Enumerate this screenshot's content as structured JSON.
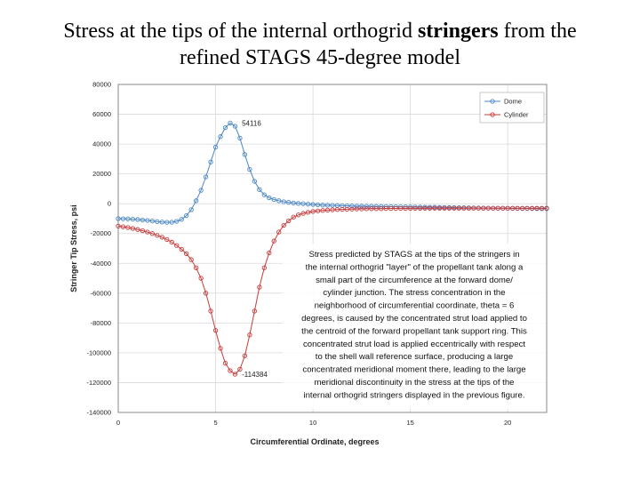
{
  "slide": {
    "title_pre": "Stress at the tips of the internal orthogrid ",
    "title_bold": "stringers",
    "title_post": " from the refined STAGS 45-degree model"
  },
  "chart_data": {
    "type": "line",
    "xlabel": "Circumferential Ordinate, degrees",
    "ylabel": "Stringer Tip Stress, psi",
    "xlim": [
      0,
      22
    ],
    "ylim": [
      -140000,
      80000
    ],
    "xticks": [
      0,
      5,
      10,
      15,
      20
    ],
    "yticks": [
      80000,
      60000,
      40000,
      20000,
      0,
      -20000,
      -40000,
      -60000,
      -80000,
      -100000,
      -120000,
      -140000
    ],
    "grid": true,
    "legend_position": "top-right",
    "series": [
      {
        "name": "Dome",
        "color": "#4a86c5",
        "x": [
          0,
          0.25,
          0.5,
          0.75,
          1,
          1.25,
          1.5,
          1.75,
          2,
          2.25,
          2.5,
          2.75,
          3,
          3.25,
          3.5,
          3.75,
          4,
          4.25,
          4.5,
          4.75,
          5,
          5.25,
          5.5,
          5.75,
          6,
          6.25,
          6.5,
          6.75,
          7,
          7.25,
          7.5,
          7.75,
          8,
          8.25,
          8.5,
          8.75,
          9,
          9.25,
          9.5,
          9.75,
          10,
          10.25,
          10.5,
          10.75,
          11,
          11.25,
          11.5,
          11.75,
          12,
          12.25,
          12.5,
          12.75,
          13,
          13.25,
          13.5,
          13.75,
          14,
          14.25,
          14.5,
          14.75,
          15,
          15.25,
          15.5,
          15.75,
          16,
          16.25,
          16.5,
          16.75,
          17,
          17.25,
          17.5,
          17.75,
          18,
          18.25,
          18.5,
          18.75,
          19,
          19.25,
          19.5,
          19.75,
          20,
          20.25,
          20.5,
          20.75,
          21,
          21.25,
          21.5,
          21.75,
          22
        ],
        "y": [
          -10000,
          -10100,
          -10200,
          -10400,
          -10600,
          -10900,
          -11200,
          -11600,
          -12000,
          -12300,
          -12500,
          -12400,
          -11800,
          -10500,
          -8000,
          -4000,
          2000,
          9000,
          18000,
          28000,
          38000,
          45000,
          51000,
          54116,
          52000,
          44000,
          33000,
          23000,
          15000,
          9500,
          6000,
          4000,
          2800,
          2000,
          1300,
          900,
          500,
          200,
          0,
          -300,
          -500,
          -700,
          -900,
          -1000,
          -1100,
          -1200,
          -1300,
          -1400,
          -1500,
          -1600,
          -1650,
          -1700,
          -1750,
          -1800,
          -1850,
          -1900,
          -1950,
          -2000,
          -2050,
          -2100,
          -2150,
          -2200,
          -2250,
          -2300,
          -2350,
          -2400,
          -2450,
          -2500,
          -2550,
          -2600,
          -2650,
          -2700,
          -2750,
          -2800,
          -2850,
          -2900,
          -2950,
          -3000,
          -3000,
          -3050,
          -3100,
          -3100,
          -3150,
          -3200,
          -3200,
          -3250,
          -3300,
          -3300,
          -3350
        ]
      },
      {
        "name": "Cylinder",
        "color": "#c73b3b",
        "x": [
          0,
          0.25,
          0.5,
          0.75,
          1,
          1.25,
          1.5,
          1.75,
          2,
          2.25,
          2.5,
          2.75,
          3,
          3.25,
          3.5,
          3.75,
          4,
          4.25,
          4.5,
          4.75,
          5,
          5.25,
          5.5,
          5.75,
          6,
          6.25,
          6.5,
          6.75,
          7,
          7.25,
          7.5,
          7.75,
          8,
          8.25,
          8.5,
          8.75,
          9,
          9.25,
          9.5,
          9.75,
          10,
          10.25,
          10.5,
          10.75,
          11,
          11.25,
          11.5,
          11.75,
          12,
          12.25,
          12.5,
          12.75,
          13,
          13.25,
          13.5,
          13.75,
          14,
          14.25,
          14.5,
          14.75,
          15,
          15.25,
          15.5,
          15.75,
          16,
          16.25,
          16.5,
          16.75,
          17,
          17.25,
          17.5,
          17.75,
          18,
          18.25,
          18.5,
          18.75,
          19,
          19.25,
          19.5,
          19.75,
          20,
          20.25,
          20.5,
          20.75,
          21,
          21.25,
          21.5,
          21.75,
          22
        ],
        "y": [
          -15000,
          -15500,
          -16000,
          -16600,
          -17300,
          -18100,
          -19000,
          -20000,
          -21200,
          -22500,
          -24000,
          -25800,
          -28000,
          -30500,
          -33500,
          -37500,
          -43000,
          -50000,
          -60000,
          -72000,
          -85000,
          -97000,
          -107000,
          -112000,
          -114384,
          -111000,
          -102000,
          -88000,
          -72000,
          -56000,
          -43000,
          -33000,
          -25000,
          -19000,
          -14500,
          -11500,
          -9000,
          -7500,
          -6500,
          -5800,
          -5200,
          -4800,
          -4500,
          -4300,
          -4100,
          -3900,
          -3800,
          -3700,
          -3600,
          -3500,
          -3450,
          -3400,
          -3350,
          -3300,
          -3300,
          -3250,
          -3200,
          -3200,
          -3150,
          -3150,
          -3100,
          -3100,
          -3100,
          -3050,
          -3050,
          -3000,
          -3000,
          -3000,
          -3000,
          -3000,
          -3000,
          -3000,
          -3000,
          -3000,
          -3000,
          -3000,
          -3000,
          -3000,
          -3000,
          -3000,
          -3000,
          -3000,
          -3000,
          -3000,
          -3000,
          -3000,
          -3000,
          -3000,
          -3000
        ]
      }
    ],
    "annotations": {
      "peak_max": "54116",
      "peak_min": "-114384",
      "note_lines": [
        "Stress predicted by STAGS at the tips of the stringers in",
        "the internal orthogrid \"layer\" of the propellant tank along a",
        "small part of the circumference at the forward dome/",
        "cylinder junction. The stress concentration in the",
        "neighborhood of circumferential coordinate, theta = 6",
        "degrees, is caused by the concentrated strut load applied to",
        "the centroid of the forward propellant tank support ring. This",
        "concentrated strut load is applied eccentrically with respect",
        "to the shell wall reference surface, producing a large",
        "concentrated meridional moment there, leading to the large",
        "meridional discontinuity in the stress at the tips of the",
        "internal orthogrid stringers displayed in the previous figure."
      ]
    }
  }
}
